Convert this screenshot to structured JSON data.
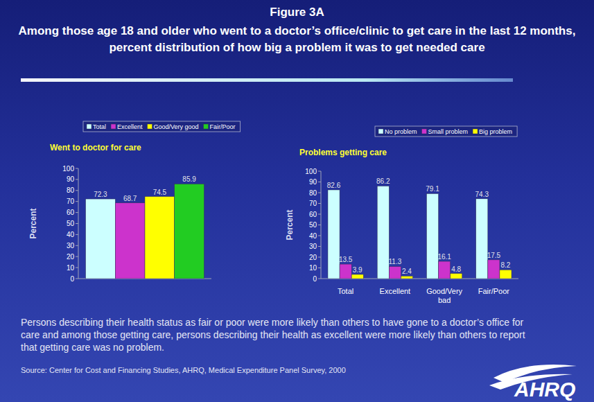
{
  "page": {
    "figure": "Figure 3A",
    "title": "Among those age 18 and older who went to a doctor’s office/clinic to get care in the last 12 months, percent distribution of how big a problem it was to get needed care",
    "caption": "Persons describing their health status as fair or poor were more likely than others to have gone to a doctor’s office for care and among those getting care, persons describing their health as excellent were more likely than others to report that getting care was no problem.",
    "source": "Source: Center for Cost and Financing Studies, AHRQ, Medical Expenditure Panel Survey, 2000",
    "logo": "AHRQ"
  },
  "chart_data": [
    {
      "type": "bar",
      "title": "Went to doctor for care",
      "ylabel": "Percent",
      "categories": [
        null
      ],
      "series": [
        {
          "name": "Total",
          "color": "#ccffff",
          "values": [
            72.3
          ]
        },
        {
          "name": "Excellent",
          "color": "#cc33cc",
          "values": [
            68.7
          ]
        },
        {
          "name": "Good/Very good",
          "color": "#ffff00",
          "values": [
            74.5
          ]
        },
        {
          "name": "Fair/Poor",
          "color": "#22cc22",
          "values": [
            85.9
          ]
        }
      ],
      "ylim": [
        0,
        100
      ],
      "yticks": [
        0,
        10,
        20,
        30,
        40,
        50,
        60,
        70,
        80,
        90,
        100
      ],
      "grid": false,
      "legend": "top",
      "data_labels": true
    },
    {
      "type": "bar",
      "title": "Problems getting care",
      "ylabel": "Percent",
      "categories": [
        "Total",
        "Excellent",
        "Good/Very bad",
        "Fair/Poor"
      ],
      "series": [
        {
          "name": "No problem",
          "color": "#ccffff",
          "values": [
            82.6,
            86.2,
            79.1,
            74.3
          ]
        },
        {
          "name": "Small problem",
          "color": "#cc33cc",
          "values": [
            13.5,
            11.3,
            16.1,
            17.5
          ]
        },
        {
          "name": "Big problem",
          "color": "#ffff00",
          "values": [
            3.9,
            2.4,
            4.8,
            8.2
          ]
        }
      ],
      "ylim": [
        0,
        100
      ],
      "yticks": [
        0,
        10,
        20,
        30,
        40,
        50,
        60,
        70,
        80,
        90,
        100
      ],
      "grid": false,
      "legend": "top",
      "data_labels": true
    }
  ]
}
